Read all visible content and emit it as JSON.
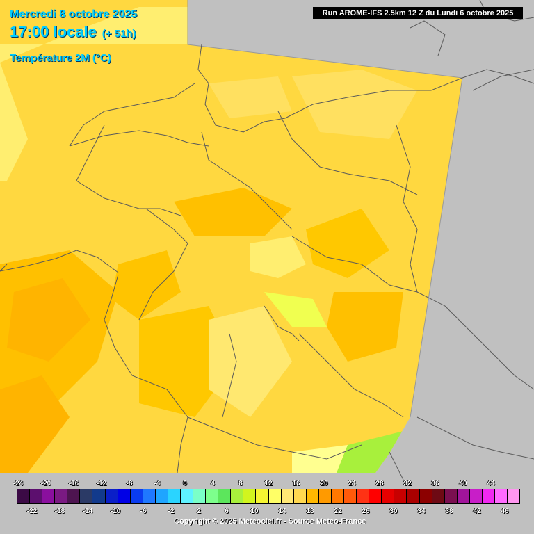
{
  "header": {
    "date": "Mercredi 8 octobre 2025",
    "time": "17:00 locale",
    "step": "(+ 51h)",
    "variable": "Température 2M (°C)",
    "run": "Run AROME-IFS 2.5km 12 Z du Lundi 6 octobre 2025"
  },
  "legend": {
    "top_labels": [
      "-24",
      "-20",
      "-16",
      "-12",
      "-8",
      "-4",
      "0",
      "4",
      "8",
      "12",
      "16",
      "20",
      "24",
      "28",
      "32",
      "36",
      "40",
      "44"
    ],
    "bottom_labels": [
      "-22",
      "-18",
      "-14",
      "-10",
      "-6",
      "-2",
      "2",
      "6",
      "10",
      "14",
      "18",
      "22",
      "26",
      "30",
      "34",
      "38",
      "42",
      "46"
    ],
    "colors": [
      "#3b0a45",
      "#5c0f6e",
      "#8a0f9e",
      "#7a1a82",
      "#4d1450",
      "#2b3a66",
      "#123a8c",
      "#0a1fc8",
      "#0000e6",
      "#0a3cf0",
      "#1f78ff",
      "#1fa5ff",
      "#2ad4ff",
      "#5ef2ff",
      "#7affc8",
      "#7dff8c",
      "#5ce65c",
      "#a8f03c",
      "#d2f51e",
      "#f5f532",
      "#ffff66",
      "#ffe875",
      "#ffd850",
      "#ffb800",
      "#ff9a00",
      "#ff7800",
      "#ff5a0a",
      "#ff3214",
      "#ff0000",
      "#e60000",
      "#c80000",
      "#aa0000",
      "#8c0000",
      "#6e0a14",
      "#7a0f50",
      "#a0149a",
      "#c81ec8",
      "#f028f0",
      "#ff6aff",
      "#ff96f0"
    ]
  },
  "footer": {
    "copyright": "Copyright © 2025 Meteociel.fr - Source Meteo-France"
  },
  "map_style": {
    "no_data": "#c0c0c0",
    "border": "#5a5a5a",
    "temp_fill": [
      "#ffdc40",
      "#ffd030",
      "#ffc000",
      "#ffb400",
      "#ffee60",
      "#ffff80",
      "#e8ff40"
    ]
  }
}
